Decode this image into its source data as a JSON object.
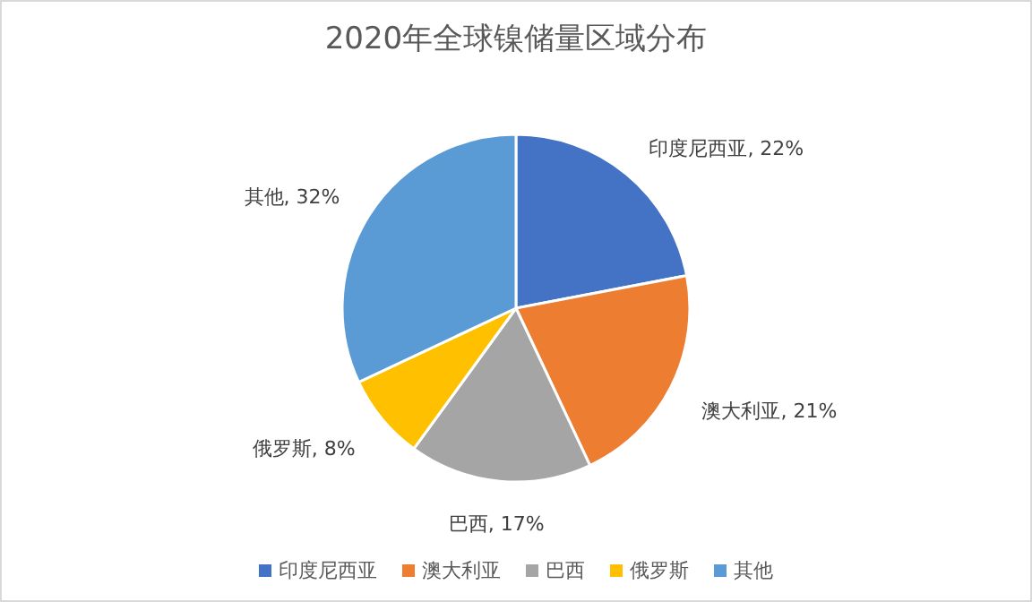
{
  "chart_data": {
    "type": "pie",
    "title": "2020年全球镍储量区域分布",
    "categories": [
      "印度尼西亚",
      "澳大利亚",
      "巴西",
      "俄罗斯",
      "其他"
    ],
    "values": [
      22,
      21,
      17,
      8,
      32
    ],
    "colors": [
      "#4472c4",
      "#ed7d31",
      "#a5a5a5",
      "#ffc000",
      "#5b9bd5"
    ],
    "value_labels": [
      "印度尼西亚, 22%",
      "澳大利亚, 21%",
      "巴西, 17%",
      "俄罗斯, 8%",
      "其他, 32%"
    ],
    "legend": "bottom"
  }
}
